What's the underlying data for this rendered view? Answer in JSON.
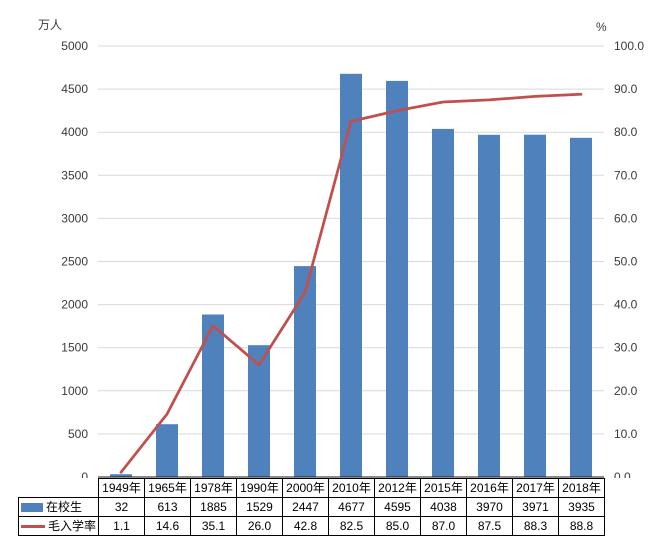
{
  "chart_data": {
    "type": "combo",
    "categories": [
      "1949年",
      "1965年",
      "1978年",
      "1990年",
      "2000年",
      "2010年",
      "2012年",
      "2015年",
      "2016年",
      "2017年",
      "2018年"
    ],
    "series": [
      {
        "name": "在校生",
        "type": "bar",
        "axis": "left",
        "color": "#4f81bd",
        "decimals": 0,
        "values": [
          32,
          613,
          1885,
          1529,
          2447,
          4677,
          4595,
          4038,
          3970,
          3971,
          3935
        ]
      },
      {
        "name": "毛入学率",
        "type": "line",
        "axis": "right",
        "color": "#c0504d",
        "decimals": 1,
        "values": [
          1.1,
          14.6,
          35.1,
          26.0,
          42.8,
          82.5,
          85.0,
          87.0,
          87.5,
          88.3,
          88.8
        ]
      }
    ],
    "left_axis": {
      "title": "万人",
      "min": 0,
      "max": 5000,
      "step": 500,
      "ticks": [
        "0",
        "500",
        "1000",
        "1500",
        "2000",
        "2500",
        "3000",
        "3500",
        "4000",
        "4500",
        "5000"
      ]
    },
    "right_axis": {
      "title": "%",
      "min": 0,
      "max": 100,
      "step": 10,
      "ticks": [
        "0.0",
        "10.0",
        "20.0",
        "30.0",
        "40.0",
        "50.0",
        "60.0",
        "70.0",
        "80.0",
        "90.0",
        "100.0"
      ]
    },
    "title": "",
    "grid": true,
    "gridline_color": "#d9d9d9",
    "axis_line_color": "#1a1a1a",
    "tick_label_color": "#3a3a3a",
    "legend_position": "embedded in data table left column"
  }
}
